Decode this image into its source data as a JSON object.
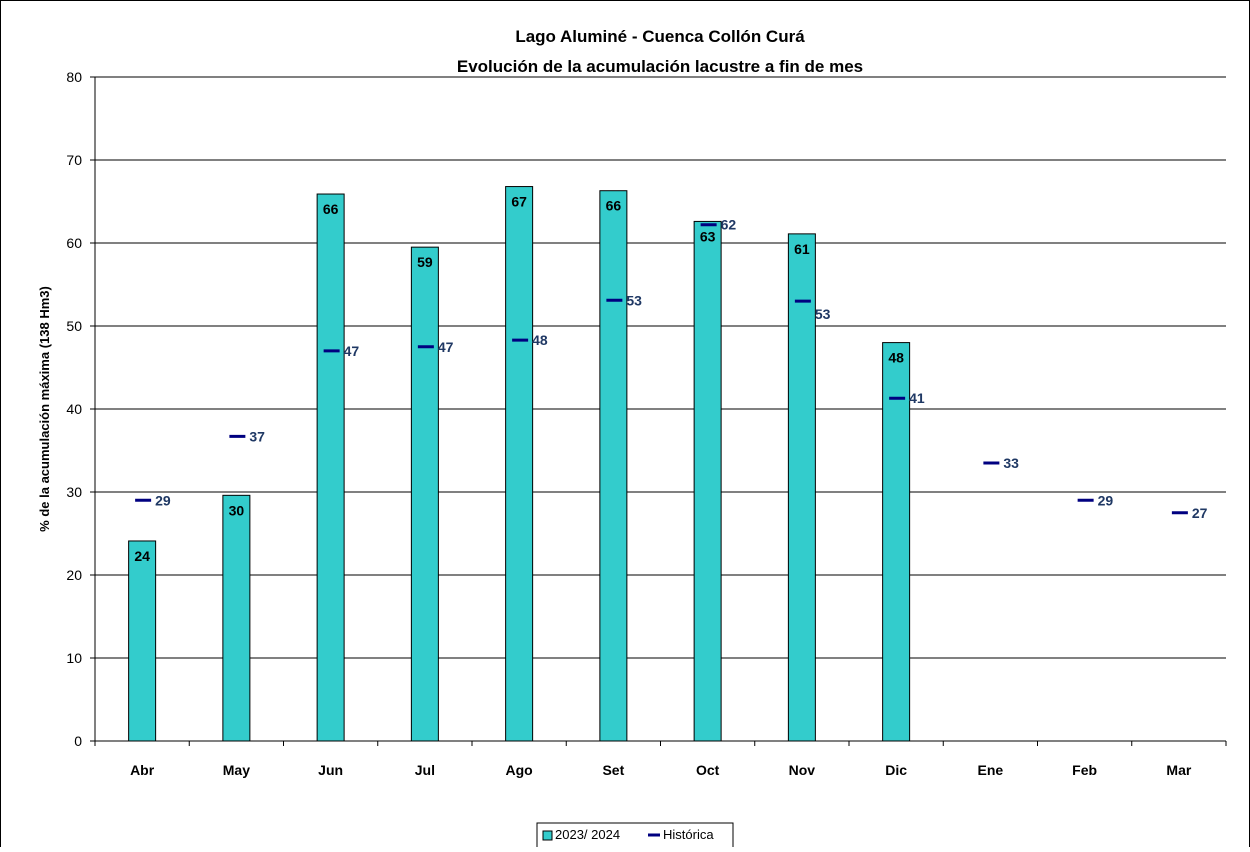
{
  "chart_data": {
    "type": "bar",
    "title": "Lago Aluminé - Cuenca Collón Curá",
    "subtitle": "Evolución de la acumulación lacustre a fin de mes",
    "xlabel": "",
    "ylabel": "% de la acumulación máxima (138 Hm3)",
    "ylim": [
      0,
      80
    ],
    "yticks": [
      0,
      10,
      20,
      30,
      40,
      50,
      60,
      70,
      80
    ],
    "grid": true,
    "legend": "bottom",
    "categories": [
      "Abr",
      "May",
      "Jun",
      "Jul",
      "Ago",
      "Set",
      "Oct",
      "Nov",
      "Dic",
      "Ene",
      "Feb",
      "Mar"
    ],
    "series": [
      {
        "name": "2023/ 2024",
        "type": "bar",
        "color": "#33CCCC",
        "values": [
          24.1,
          29.6,
          65.9,
          59.5,
          66.8,
          66.3,
          62.6,
          61.1,
          48.0,
          null,
          null,
          null
        ],
        "labels": [
          "24",
          "30",
          "66",
          "59",
          "67",
          "66",
          "63",
          "61",
          "48",
          "",
          "",
          ""
        ]
      },
      {
        "name": "Histórica",
        "type": "marker",
        "color": "#000080",
        "label_color": "#1F3864",
        "values": [
          29.0,
          36.7,
          47.0,
          47.5,
          48.3,
          53.1,
          62.2,
          53.0,
          41.3,
          33.5,
          29.0,
          27.5
        ],
        "labels": [
          "29",
          "37",
          "47",
          "47",
          "48",
          "53",
          "62",
          "53",
          "41",
          "33",
          "29",
          "27"
        ]
      }
    ]
  }
}
